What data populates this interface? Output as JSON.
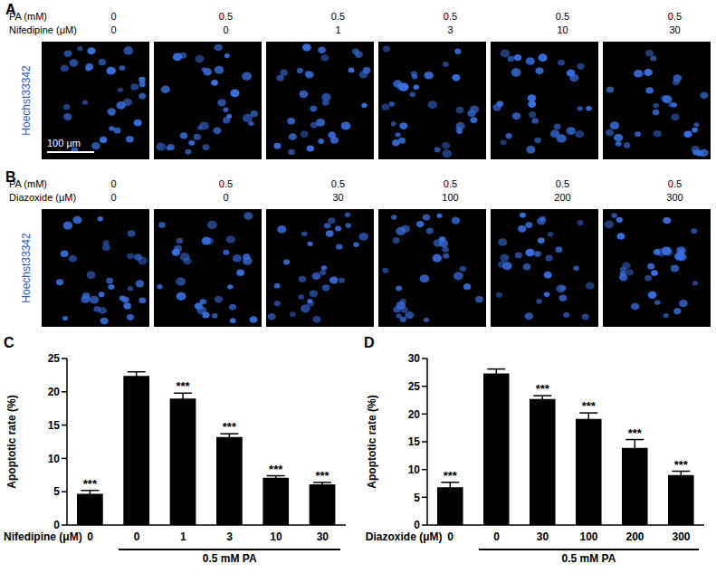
{
  "panels": [
    {
      "label": "A",
      "stain": "Hoechst33342",
      "scale_bar": "100 μm",
      "rows": [
        {
          "name": "PA (mM)",
          "values": [
            0,
            0.5,
            0.5,
            0.5,
            0.5,
            0.5
          ]
        },
        {
          "name": "Nifedipine (μM)",
          "values": [
            0,
            0,
            1,
            3,
            10,
            30
          ]
        }
      ]
    },
    {
      "label": "B",
      "stain": "Hoechst33342",
      "rows": [
        {
          "name": "PA (mM)",
          "values": [
            0,
            0.5,
            0.5,
            0.5,
            0.5,
            0.5
          ]
        },
        {
          "name": "Diazoxide (μM)",
          "values": [
            0,
            0,
            30,
            100,
            200,
            300
          ]
        }
      ]
    }
  ],
  "chart_data": [
    {
      "panel": "C",
      "type": "bar",
      "ylabel": "Apoptotic rate (%)",
      "xlabel": "Nifedipine (μM)",
      "categories": [
        "0",
        "0",
        "1",
        "3",
        "10",
        "30"
      ],
      "values": [
        4.7,
        22.4,
        19.0,
        13.2,
        7.1,
        6.1
      ],
      "errors": [
        0.5,
        0.6,
        0.8,
        0.5,
        0.3,
        0.3
      ],
      "significance": [
        "***",
        null,
        "***",
        "***",
        "***",
        "***"
      ],
      "group": {
        "label": "0.5 mM PA",
        "first_category": 1,
        "last_category": 5
      },
      "color": "#000000",
      "ylim": [
        0,
        25
      ],
      "yticks": [
        0,
        5,
        10,
        15,
        20,
        25
      ]
    },
    {
      "panel": "D",
      "type": "bar",
      "ylabel": "Apoptotic rate (%)",
      "xlabel": "Diazoxide (μM)",
      "categories": [
        "0",
        "0",
        "30",
        "100",
        "200",
        "300"
      ],
      "values": [
        6.8,
        27.3,
        22.7,
        19.1,
        13.9,
        9.0
      ],
      "errors": [
        0.9,
        0.8,
        0.6,
        1.1,
        1.5,
        0.7
      ],
      "significance": [
        "***",
        null,
        "***",
        "***",
        "***",
        "***"
      ],
      "group": {
        "label": "0.5 mM PA",
        "first_category": 1,
        "last_category": 5
      },
      "color": "#000000",
      "ylim": [
        0,
        30
      ],
      "yticks": [
        0,
        5,
        10,
        15,
        20,
        25,
        30
      ]
    }
  ]
}
